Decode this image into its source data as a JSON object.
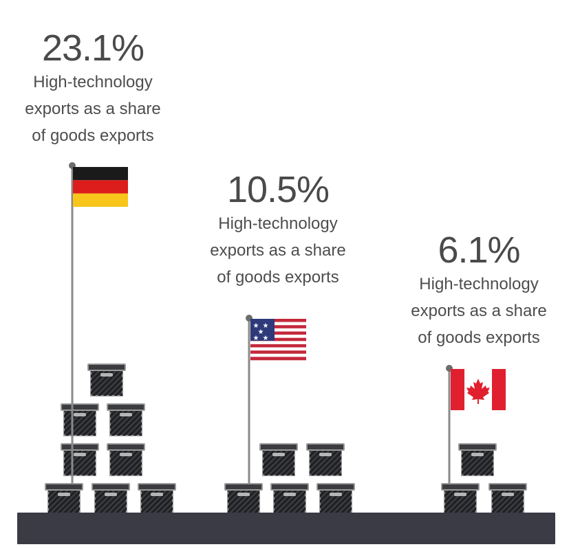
{
  "chart_data": {
    "type": "bar",
    "categories": [
      "Germany",
      "United States",
      "Canada"
    ],
    "values": [
      23.1,
      10.5,
      6.1
    ],
    "unit": "%",
    "ylabel": "High-technology exports as a share of goods exports",
    "boxes_per_country": [
      9,
      5,
      3
    ]
  },
  "stats": [
    {
      "value": "23.1%",
      "line1": "High-technology",
      "line2": "exports as a share",
      "line3": "of goods exports"
    },
    {
      "value": "10.5%",
      "line1": "High-technology",
      "line2": "exports as a share",
      "line3": "of goods exports"
    },
    {
      "value": "6.1%",
      "line1": "High-technology",
      "line2": "exports as a share",
      "line3": "of goods exports"
    }
  ],
  "colors": {
    "ground": "#3a3b45",
    "box_fill": "#3b3c40",
    "box_rim": "#9a9a9a",
    "pole": "#8a8a8a",
    "germany": [
      "#1a1a1a",
      "#dd1c1c",
      "#f8c51a"
    ],
    "usa_red": "#c4283a",
    "usa_blue": "#2f3a7a",
    "canada_red": "#e0202e"
  }
}
